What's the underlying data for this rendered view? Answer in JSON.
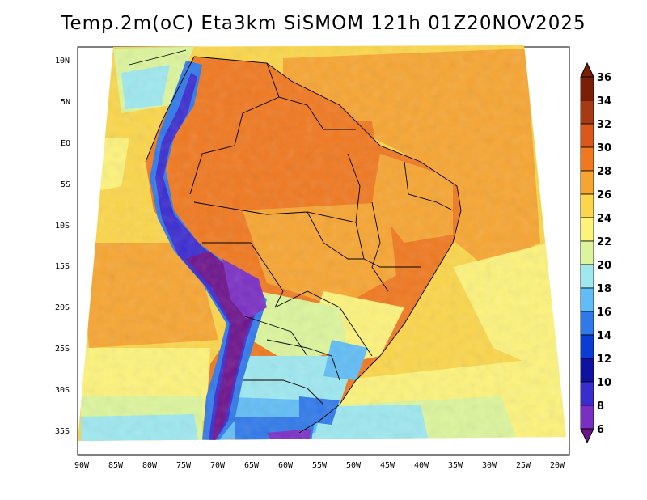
{
  "title": "Temp.2m(oC) Eta3km SiSMOM 121h 01Z20NOV2025",
  "lat_labels": [
    "10N",
    "5N",
    "EQ",
    "5S",
    "10S",
    "15S",
    "20S",
    "25S",
    "30S",
    "35S"
  ],
  "lon_labels": [
    "90W",
    "85W",
    "80W",
    "75W",
    "70W",
    "65W",
    "60W",
    "55W",
    "50W",
    "45W",
    "40W",
    "35W",
    "30W",
    "25W",
    "20W"
  ],
  "colorbar": {
    "labels": [
      "36",
      "34",
      "32",
      "30",
      "28",
      "26",
      "24",
      "22",
      "20",
      "18",
      "16",
      "14",
      "12",
      "10",
      "8",
      "6"
    ],
    "colors": [
      "#7a1e06",
      "#a63a12",
      "#d9581a",
      "#f0781f",
      "#f7a531",
      "#fbd64a",
      "#fdf37b",
      "#dcf59c",
      "#9ee8f0",
      "#60bdf5",
      "#2f79ea",
      "#0a3dd6",
      "#0f12a0",
      "#3b2cd0",
      "#7a2fc4",
      "#6d138c"
    ]
  },
  "map_colors": {
    "ocean_warm": "#f7a531",
    "ocean_mid": "#fbd64a",
    "ocean_cool": "#fdf37b",
    "ocean_cold": "#dcf59c",
    "ocean_colder": "#9ee8f0",
    "land_hot": "#f0781f",
    "land_warm": "#f7a531",
    "andes_high": "#6d138c",
    "andes_mid": "#3b2cd0",
    "andes_low": "#2f79ea",
    "south_cold": "#60bdf5"
  }
}
